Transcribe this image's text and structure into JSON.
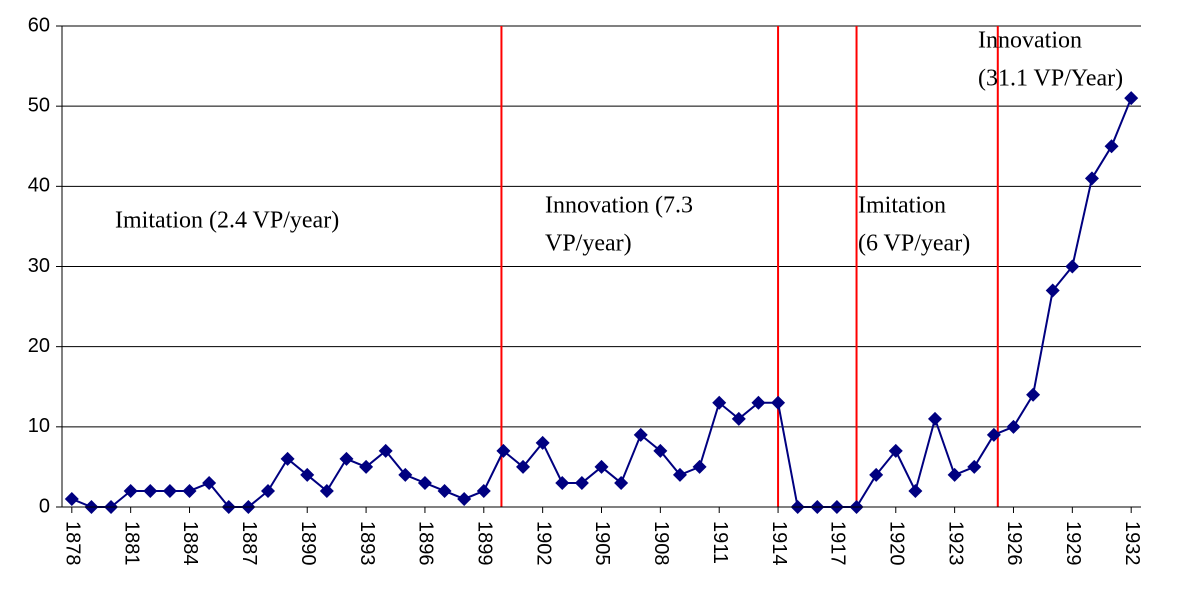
{
  "chart_data": {
    "type": "line",
    "x": [
      1878,
      1879,
      1880,
      1881,
      1882,
      1883,
      1884,
      1885,
      1886,
      1887,
      1888,
      1889,
      1890,
      1891,
      1892,
      1893,
      1894,
      1895,
      1896,
      1897,
      1898,
      1899,
      1900,
      1901,
      1902,
      1903,
      1904,
      1905,
      1906,
      1907,
      1908,
      1909,
      1910,
      1911,
      1912,
      1913,
      1914,
      1915,
      1916,
      1917,
      1918,
      1919,
      1920,
      1921,
      1922,
      1923,
      1924,
      1925,
      1926,
      1927,
      1928,
      1929,
      1930,
      1931,
      1932
    ],
    "values": [
      1,
      0,
      0,
      2,
      2,
      2,
      2,
      3,
      0,
      0,
      2,
      6,
      4,
      2,
      6,
      5,
      7,
      4,
      3,
      2,
      1,
      2,
      7,
      5,
      8,
      3,
      3,
      5,
      3,
      9,
      7,
      4,
      5,
      13,
      11,
      13,
      13,
      0,
      0,
      0,
      0,
      4,
      7,
      2,
      11,
      4,
      5,
      9,
      10,
      14,
      27,
      30,
      41,
      45,
      51
    ],
    "color": "#000080",
    "xlim": [
      1877.5,
      1932.5
    ],
    "xticks": [
      1878,
      1881,
      1884,
      1887,
      1890,
      1893,
      1896,
      1899,
      1902,
      1905,
      1908,
      1911,
      1914,
      1917,
      1920,
      1923,
      1926,
      1929,
      1932
    ],
    "ylim": [
      0,
      60
    ],
    "yticks": [
      0,
      10,
      20,
      30,
      40,
      50,
      60
    ],
    "grid": true,
    "vlines": [
      1899.9,
      1914,
      1918,
      1925.2
    ],
    "vline_color": "#ff0000",
    "annotations": [
      {
        "lines": [
          "Imitation (2.4 VP/year)"
        ]
      },
      {
        "lines": [
          "Innovation (7.3",
          "VP/year)"
        ]
      },
      {
        "lines": [
          "Imitation",
          "(6 VP/year)"
        ]
      },
      {
        "lines": [
          "Innovation",
          "(31.1 VP/Year)"
        ]
      }
    ]
  }
}
